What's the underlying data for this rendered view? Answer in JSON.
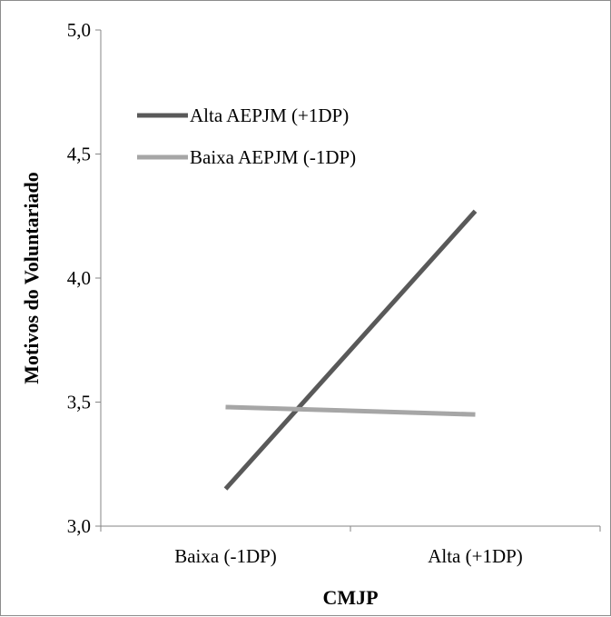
{
  "chart_data": {
    "type": "line",
    "title": "",
    "xlabel": "CMJP",
    "ylabel": "Motivos do Voluntariado",
    "categories": [
      "Baixa (-1DP)",
      "Alta (+1DP)"
    ],
    "ylim": [
      3.0,
      5.0
    ],
    "yticks": [
      "3,0",
      "3,5",
      "4,0",
      "4,5",
      "5,0"
    ],
    "ytick_values": [
      3.0,
      3.5,
      4.0,
      4.5,
      5.0
    ],
    "grid": false,
    "legend_position": "top-left",
    "series": [
      {
        "name": "Alta AEPJM (+1DP)",
        "values": [
          3.15,
          4.27
        ],
        "color": "#595959"
      },
      {
        "name": "Baixa AEPJM (-1DP)",
        "values": [
          3.48,
          3.45
        ],
        "color": "#a6a6a6"
      }
    ]
  }
}
